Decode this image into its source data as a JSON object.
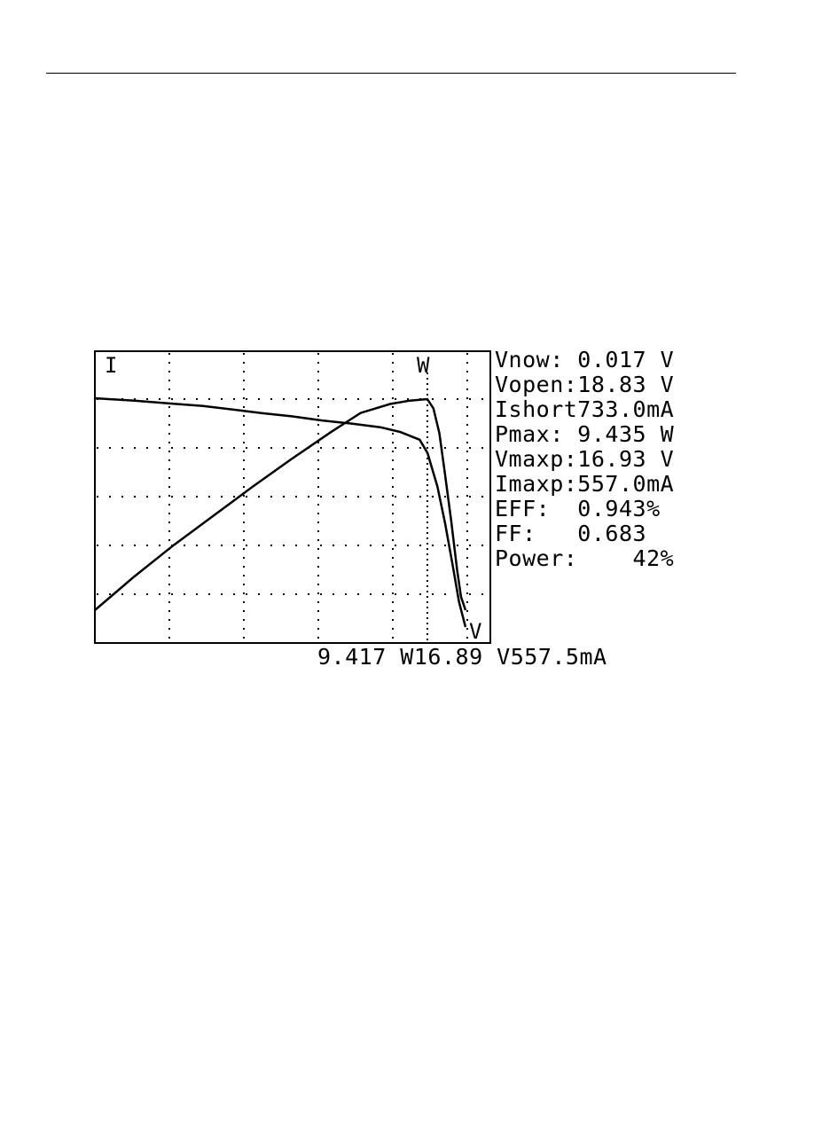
{
  "chart_data": {
    "type": "line",
    "title": "",
    "corner_labels": {
      "current": "I",
      "power": "W",
      "voltage": "V"
    },
    "grid": true,
    "x_range": [
      0,
      18.83
    ],
    "mpp_voltage": 16.89,
    "series": [
      {
        "name": "I",
        "unit": "mA",
        "points": [
          [
            0.0,
            733
          ],
          [
            2.0,
            725
          ],
          [
            4.0,
            715
          ],
          [
            5.5,
            708
          ],
          [
            7.0,
            697
          ],
          [
            8.5,
            685
          ],
          [
            10.0,
            675
          ],
          [
            11.5,
            662
          ],
          [
            13.0,
            652
          ],
          [
            14.5,
            640
          ],
          [
            15.5,
            625
          ],
          [
            16.5,
            600
          ],
          [
            16.9,
            557
          ],
          [
            17.4,
            450
          ],
          [
            17.8,
            330
          ],
          [
            18.2,
            190
          ],
          [
            18.5,
            80
          ],
          [
            18.83,
            0
          ]
        ]
      },
      {
        "name": "W",
        "unit": "W",
        "points": [
          [
            0.0,
            0.0
          ],
          [
            2.0,
            1.5
          ],
          [
            4.0,
            2.9
          ],
          [
            6.0,
            4.2
          ],
          [
            8.0,
            5.5
          ],
          [
            10.0,
            6.75
          ],
          [
            12.0,
            7.95
          ],
          [
            13.5,
            8.8
          ],
          [
            15.0,
            9.2
          ],
          [
            16.0,
            9.35
          ],
          [
            16.89,
            9.417
          ],
          [
            17.2,
            9.0
          ],
          [
            17.5,
            7.9
          ],
          [
            17.8,
            6.0
          ],
          [
            18.1,
            4.0
          ],
          [
            18.4,
            1.8
          ],
          [
            18.6,
            0.6
          ],
          [
            18.83,
            0.0
          ]
        ]
      }
    ]
  },
  "readings": {
    "vnow": "Vnow: 0.017 V",
    "vopen": "Vopen:18.83 V",
    "ishort": "Ishort733.0mA",
    "pmax": "Pmax: 9.435 W",
    "vmaxp": "Vmaxp:16.93 V",
    "imaxp": "Imaxp:557.0mA",
    "eff": "EFF:  0.943%",
    "ff": "FF:   0.683",
    "power": "Power:    42%"
  },
  "cursor": {
    "power": "9.417 W",
    "voltage": "16.89 V",
    "current": "557.5mA"
  }
}
